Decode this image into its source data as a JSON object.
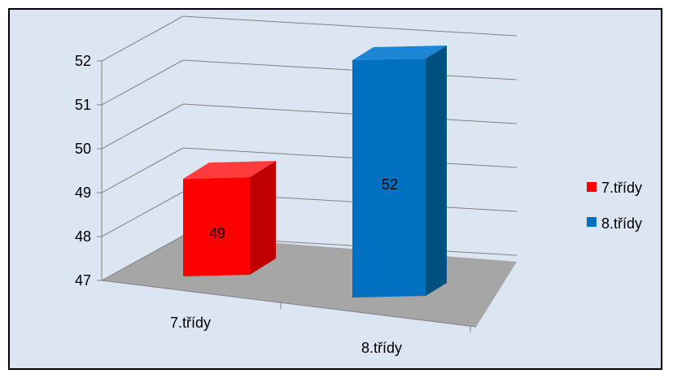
{
  "chart_data": {
    "type": "bar",
    "categories": [
      "7.třídy",
      "8.třídy"
    ],
    "series": [
      {
        "name": "7.třídy",
        "values": [
          49,
          null
        ]
      },
      {
        "name": "8.třídy",
        "values": [
          null,
          52
        ]
      }
    ],
    "data_labels": [
      "49",
      "52"
    ],
    "title": "",
    "xlabel": "",
    "ylabel": "",
    "ylim": [
      47,
      52
    ],
    "yticks": [
      "47",
      "48",
      "49",
      "50",
      "51",
      "52"
    ],
    "grid": true,
    "three_d": true,
    "legend": {
      "position": "right",
      "items": [
        {
          "label": "7.třídy",
          "color": "#ff0000"
        },
        {
          "label": "8.třídy",
          "color": "#0070c0"
        }
      ]
    },
    "colors": {
      "series1": "#ff0000",
      "series2": "#0070c0",
      "background": "#dce6f2",
      "floor": "#a6a6a6"
    }
  }
}
